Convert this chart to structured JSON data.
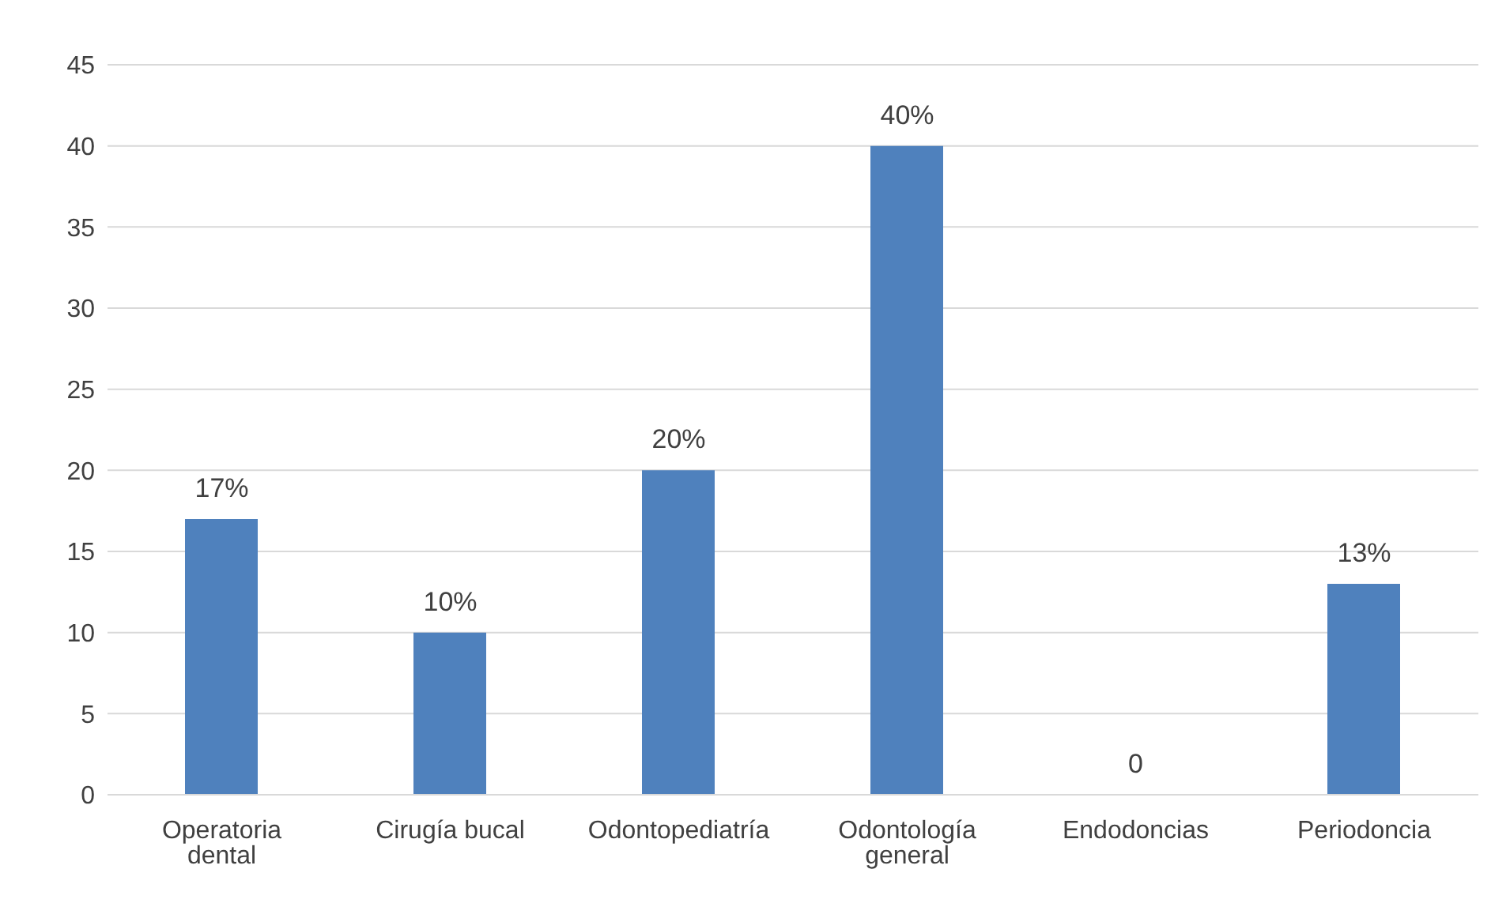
{
  "chart_data": {
    "type": "bar",
    "categories": [
      "Operatoria dental",
      "Cirugía bucal",
      "Odontopediatría",
      "Odontología general",
      "Endodoncias",
      "Periodoncia"
    ],
    "values": [
      17,
      10,
      20,
      40,
      0,
      13
    ],
    "value_labels": [
      "17%",
      "10%",
      "20%",
      "40%",
      "0",
      "13%"
    ],
    "color": "#4f81bd",
    "ylim": [
      0,
      45
    ],
    "yticks": [
      0,
      5,
      10,
      15,
      20,
      25,
      30,
      35,
      40,
      45
    ],
    "grid": "y"
  }
}
